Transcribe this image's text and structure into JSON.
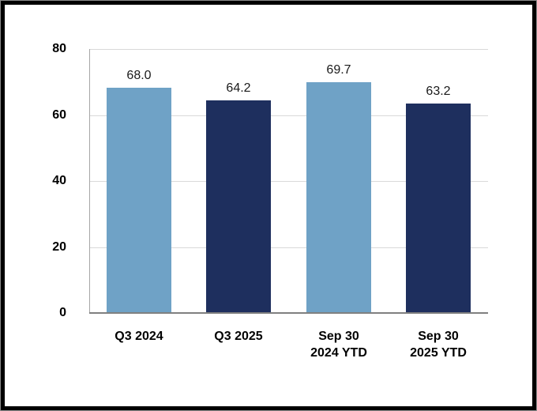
{
  "chart_data": {
    "type": "bar",
    "title": "",
    "xlabel": "",
    "ylabel": "",
    "categories": [
      "Q3 2024",
      "Q3 2025",
      "Sep 30\n2024 YTD",
      "Sep 30\n2025 YTD"
    ],
    "values": [
      68.0,
      64.2,
      69.7,
      63.2
    ],
    "value_labels": [
      "68.0",
      "64.2",
      "69.7",
      "63.2"
    ],
    "bar_colors": [
      "#6FA2C6",
      "#1E2F5E",
      "#6FA2C6",
      "#1E2F5E"
    ],
    "ylim": [
      0,
      80
    ],
    "yticks": [
      0,
      20,
      40,
      60,
      80
    ],
    "ytick_labels": [
      "0",
      "20",
      "40",
      "60",
      "80"
    ],
    "grid": true,
    "legend": false
  },
  "colors": {
    "bar_light_blue": "#6FA2C6",
    "bar_dark_navy": "#1E2F5E",
    "gridline": "#D9D9D9",
    "y_axis_line": "#A6A6A6",
    "x_axis_line": "#808080",
    "tick_text": "#000000",
    "value_text": "#1a1a1a",
    "frame_border": "#000000",
    "outer_ring": "#8C8C8C",
    "background": "#FFFFFF"
  }
}
